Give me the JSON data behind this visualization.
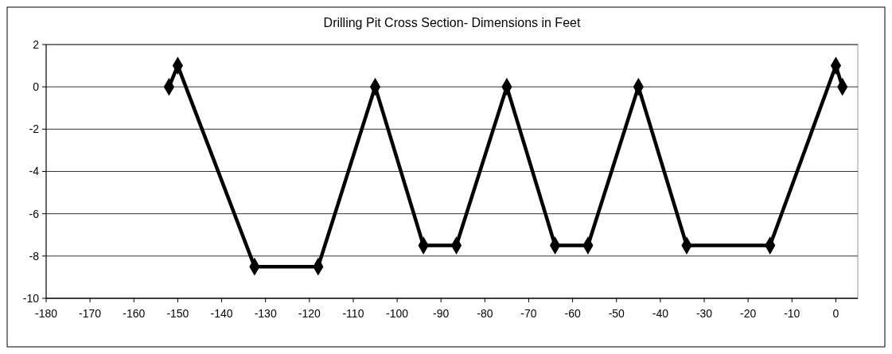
{
  "chart_data": {
    "type": "line",
    "title": "Drilling Pit Cross Section- Dimensions in Feet",
    "x": [
      -152,
      -150,
      -132.5,
      -118,
      -105,
      -94,
      -86.5,
      -75,
      -64,
      -56.5,
      -45,
      -34,
      -15,
      0,
      1.5
    ],
    "series": [
      {
        "color": "#000000",
        "values": [
          0,
          1,
          -8.5,
          -8.5,
          0,
          -7.5,
          -7.5,
          0,
          -7.5,
          -7.5,
          0,
          -7.5,
          -7.5,
          1,
          0
        ]
      }
    ],
    "xlim": [
      -180,
      5
    ],
    "xticks": [
      -180,
      -170,
      -160,
      -150,
      -140,
      -130,
      -120,
      -110,
      -100,
      -90,
      -80,
      -70,
      -60,
      -50,
      -40,
      -30,
      -20,
      -10,
      0
    ],
    "ylim": [
      -10,
      2
    ],
    "yticks": [
      -10,
      -8,
      -6,
      -4,
      -2,
      0,
      2
    ],
    "grid": "y",
    "marker": "diamond",
    "line_style": "solid"
  }
}
